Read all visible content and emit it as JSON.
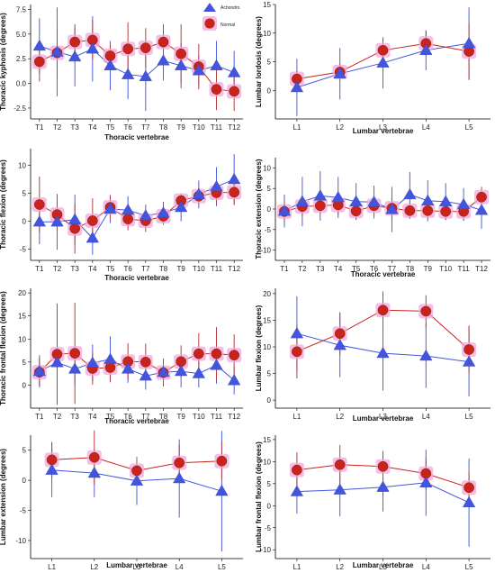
{
  "legend": {
    "achondro": "Achondro",
    "normal": "Normal"
  },
  "colors": {
    "achondro": "#4455dd",
    "normal": "#c8241c",
    "normal_halo": "#f2a8dc",
    "achondro_err": "#4f60e0",
    "normal_err": "#b84040"
  },
  "chart_data": [
    {
      "type": "line",
      "ylabel": "Thoracic kyphosis (degrees)",
      "xlabel": "Thoracic vertebrae",
      "categories": [
        "T1",
        "T2",
        "T3",
        "T4",
        "T5",
        "T6",
        "T7",
        "T8",
        "T9",
        "T10",
        "T11",
        "T12"
      ],
      "ylim": [
        -3.6,
        8.0
      ],
      "yticks": [
        -2.5,
        0.0,
        2.5,
        5.0,
        7.5
      ],
      "ytick_labels": [
        "-2.5",
        "0.0",
        "2.5",
        "5.0",
        "7.5"
      ],
      "legend_position": "top-right",
      "series": [
        {
          "name": "Achondro",
          "values": [
            3.8,
            3.2,
            2.7,
            3.5,
            1.8,
            0.9,
            0.7,
            2.3,
            1.8,
            1.3,
            1.8,
            1.1
          ],
          "err": [
            2.8,
            4.5,
            3.0,
            3.3,
            2.5,
            2.5,
            3.5,
            2.0,
            2.3,
            1.5,
            2.5,
            2.2
          ]
        },
        {
          "name": "Normal",
          "values": [
            2.2,
            3.1,
            4.2,
            4.4,
            2.8,
            3.5,
            3.6,
            4.2,
            3.0,
            1.7,
            -0.6,
            -0.8
          ],
          "err": [
            2.0,
            2.5,
            1.8,
            2.0,
            1.2,
            2.7,
            2.0,
            1.8,
            3.0,
            2.3,
            2.1,
            2.0
          ]
        }
      ]
    },
    {
      "type": "line",
      "ylabel": "Lumbar lordosis (degrees)",
      "xlabel": "Lumbar vertebrae",
      "categories": [
        "L1",
        "L2",
        "L3",
        "L4",
        "L5"
      ],
      "ylim": [
        -5,
        15
      ],
      "yticks": [
        0,
        5,
        10,
        15
      ],
      "ytick_labels": [
        "0",
        "5",
        "10",
        "15"
      ],
      "series": [
        {
          "name": "Achondro",
          "values": [
            0.5,
            2.9,
            4.8,
            7.0,
            8.2
          ],
          "err": [
            5.0,
            4.5,
            4.5,
            3.5,
            6.3
          ]
        },
        {
          "name": "Normal",
          "values": [
            2.0,
            3.2,
            7.0,
            8.2,
            6.8
          ],
          "err": [
            1.5,
            1.5,
            2.0,
            2.2,
            5.0
          ]
        }
      ]
    },
    {
      "type": "line",
      "ylabel": "Thoracic flexion (degrees)",
      "xlabel": "Thoracic vertebrae",
      "categories": [
        "T1",
        "T2",
        "T3",
        "T4",
        "T5",
        "T6",
        "T7",
        "T8",
        "T9",
        "T10",
        "T11",
        "T12"
      ],
      "ylim": [
        -7,
        13
      ],
      "yticks": [
        -5,
        0,
        5,
        10
      ],
      "ytick_labels": [
        "-5",
        "0",
        "5",
        "10"
      ],
      "series": [
        {
          "name": "Achondro",
          "values": [
            -0.1,
            -0.1,
            0.3,
            -3.0,
            2.2,
            2.0,
            1.0,
            1.5,
            2.5,
            4.8,
            6.2,
            7.5
          ],
          "err": [
            4.0,
            5.0,
            4.5,
            3.0,
            2.5,
            2.5,
            2.0,
            2.0,
            2.5,
            2.5,
            3.5,
            4.5
          ]
        },
        {
          "name": "Normal",
          "values": [
            3.0,
            1.2,
            -1.3,
            0.1,
            2.5,
            0.4,
            0.1,
            0.9,
            3.7,
            4.5,
            5.1,
            5.2
          ],
          "err": [
            5.0,
            3.0,
            4.5,
            4.0,
            2.2,
            2.0,
            2.0,
            1.5,
            1.2,
            1.5,
            2.0,
            2.3
          ]
        }
      ]
    },
    {
      "type": "line",
      "ylabel": "Thoracic extension (degrees)",
      "xlabel": "Thoracic vertebrae",
      "categories": [
        "T1",
        "T2",
        "T3",
        "T4",
        "T5",
        "T6",
        "T7",
        "T8",
        "T9",
        "T10",
        "T11",
        "T12"
      ],
      "ylim": [
        -12.5,
        12.5
      ],
      "yticks": [
        -10,
        -5,
        0,
        5,
        10
      ],
      "ytick_labels": [
        "-10",
        "-5",
        "0",
        "5",
        "10"
      ],
      "series": [
        {
          "name": "Achondro",
          "values": [
            -0.5,
            1.8,
            3.2,
            2.8,
            1.8,
            1.7,
            -0.1,
            3.5,
            2.0,
            1.8,
            1.1,
            -0.3
          ],
          "err": [
            4.0,
            6.0,
            6.0,
            5.0,
            4.5,
            4.0,
            5.5,
            5.5,
            5.0,
            4.5,
            4.0,
            4.5
          ]
        },
        {
          "name": "Normal",
          "values": [
            -0.6,
            0.6,
            0.8,
            1.0,
            -0.5,
            0.8,
            0.2,
            -0.4,
            -0.4,
            -0.6,
            -0.6,
            2.9
          ],
          "err": [
            2.5,
            2.5,
            2.0,
            2.5,
            2.0,
            2.0,
            2.5,
            2.0,
            2.0,
            2.0,
            2.0,
            2.5
          ]
        }
      ]
    },
    {
      "type": "line",
      "ylabel": "Thoracic frontal flexion (degrees)",
      "xlabel": "Thoracic vertebrae",
      "categories": [
        "T1",
        "T2",
        "T3",
        "T4",
        "T5",
        "T6",
        "T7",
        "T8",
        "T9",
        "T10",
        "T11",
        "T12"
      ],
      "ylim": [
        -5,
        21
      ],
      "yticks": [
        0,
        5,
        10,
        15,
        20
      ],
      "ytick_labels": [
        "0",
        "5",
        "10",
        "15",
        "20"
      ],
      "series": [
        {
          "name": "Achondro",
          "values": [
            3.0,
            4.9,
            3.5,
            4.8,
            5.6,
            3.5,
            2.0,
            2.8,
            3.0,
            2.5,
            4.3,
            1.0
          ],
          "err": [
            3.5,
            5.0,
            3.5,
            4.0,
            5.0,
            3.0,
            3.0,
            3.0,
            3.5,
            3.0,
            4.0,
            3.0
          ]
        },
        {
          "name": "Normal",
          "values": [
            2.8,
            6.7,
            6.9,
            3.6,
            3.8,
            5.1,
            5.0,
            2.7,
            5.1,
            6.8,
            6.8,
            6.5
          ],
          "err": [
            3.0,
            11.0,
            11.0,
            3.5,
            3.0,
            4.0,
            4.0,
            3.0,
            3.5,
            4.5,
            5.8,
            4.5
          ]
        }
      ]
    },
    {
      "type": "line",
      "ylabel": "Lumbar flexion (degrees)",
      "xlabel": "Lumbar vertebrae",
      "categories": [
        "L1",
        "L2",
        "L3",
        "L4",
        "L5"
      ],
      "ylim": [
        -1.5,
        21
      ],
      "yticks": [
        0,
        5,
        10,
        15,
        20
      ],
      "ytick_labels": [
        "0",
        "5",
        "10",
        "15",
        "20"
      ],
      "series": [
        {
          "name": "Achondro",
          "values": [
            12.5,
            10.3,
            8.8,
            8.3,
            7.2
          ],
          "err": [
            7.0,
            6.0,
            7.0,
            6.0,
            6.5
          ]
        },
        {
          "name": "Normal",
          "values": [
            9.1,
            12.5,
            16.9,
            16.7,
            9.5
          ],
          "err": [
            5.0,
            4.0,
            3.5,
            3.0,
            4.5
          ]
        }
      ]
    },
    {
      "type": "line",
      "ylabel": "Lumbar extension (degrees)",
      "xlabel": "Lumbar vertebrae",
      "categories": [
        "L1",
        "L2",
        "L3",
        "L4",
        "L5"
      ],
      "ylim": [
        -13,
        7.5
      ],
      "yticks": [
        -10,
        -5,
        0,
        5
      ],
      "ytick_labels": [
        "-10",
        "-5",
        "0",
        "5"
      ],
      "series": [
        {
          "name": "Achondro",
          "values": [
            1.7,
            1.2,
            -0.1,
            0.3,
            -1.8
          ],
          "err": [
            4.5,
            4.0,
            4.0,
            6.5,
            10.0
          ]
        },
        {
          "name": "Normal",
          "values": [
            3.4,
            3.8,
            1.6,
            2.9,
            3.2
          ],
          "err": [
            3.0,
            4.5,
            2.0,
            3.0,
            3.2
          ]
        }
      ]
    },
    {
      "type": "line",
      "ylabel": "Lumbar frontal flexion (degrees)",
      "xlabel": "Lumbar vertebrae",
      "categories": [
        "L1",
        "L2",
        "L3",
        "L4",
        "L5"
      ],
      "ylim": [
        -12,
        16
      ],
      "yticks": [
        -10,
        -5,
        0,
        5,
        10,
        15
      ],
      "ytick_labels": [
        "-10",
        "-5",
        "0",
        "5",
        "10",
        "15"
      ],
      "series": [
        {
          "name": "Achondro",
          "values": [
            3.2,
            3.6,
            4.2,
            5.2,
            0.7
          ],
          "err": [
            5.0,
            6.0,
            5.5,
            7.5,
            10.0
          ]
        },
        {
          "name": "Normal",
          "values": [
            8.1,
            9.3,
            8.9,
            7.3,
            4.1
          ],
          "err": [
            4.0,
            4.5,
            3.5,
            3.5,
            3.5
          ]
        }
      ]
    }
  ]
}
